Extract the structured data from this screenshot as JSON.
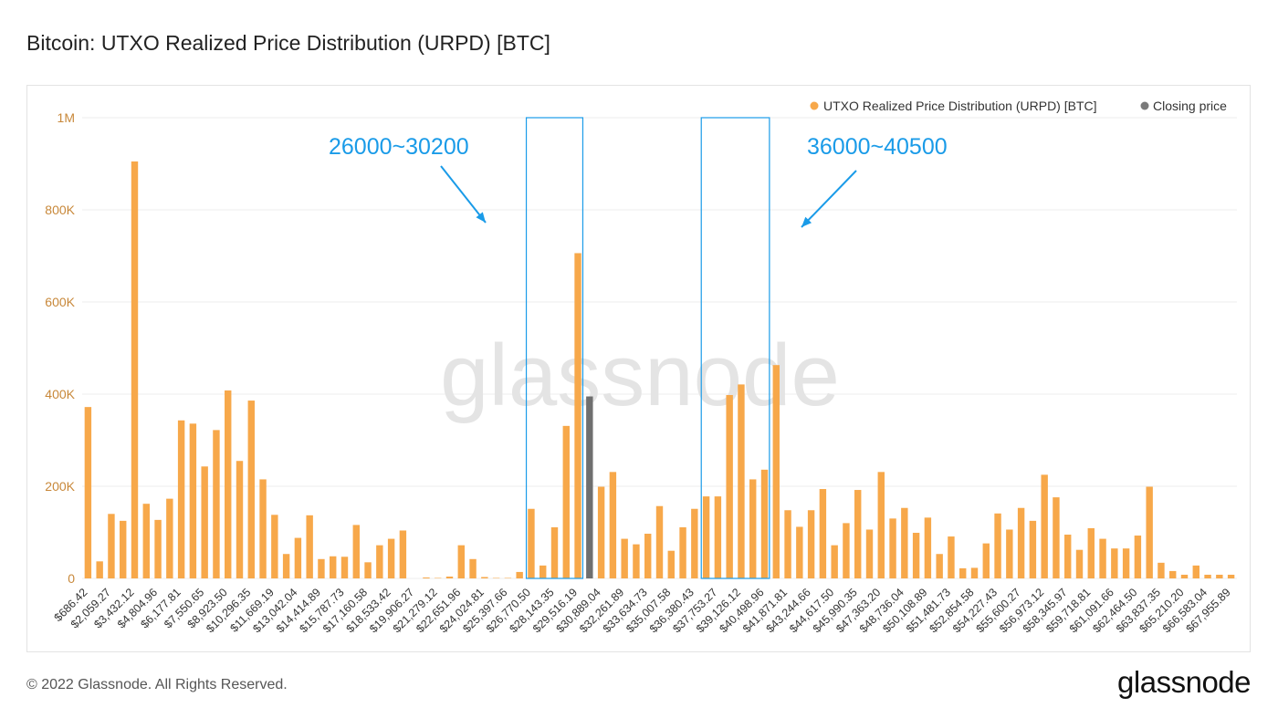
{
  "title": "Bitcoin: UTXO Realized Price Distribution (URPD) [BTC]",
  "footer": {
    "copyright": "© 2022 Glassnode. All Rights Reserved.",
    "logo_text": "glassnode"
  },
  "watermark": "glassnode",
  "colors": {
    "bar": "#f7a84a",
    "closing": "#6f6f6f",
    "annotation": "#1a9be8",
    "grid": "#eeeeee",
    "axis_text": "#c8883a"
  },
  "annotations": [
    {
      "text": "26000~30200",
      "bar_range": [
        38,
        42
      ]
    },
    {
      "text": "36000~40500",
      "bar_range": [
        53,
        58
      ]
    }
  ],
  "chart_data": {
    "type": "bar",
    "title": "Bitcoin: UTXO Realized Price Distribution (URPD) [BTC]",
    "ylim": [
      0,
      1000000
    ],
    "yticks": [
      "0",
      "200K",
      "400K",
      "600K",
      "800K",
      "1M"
    ],
    "legend_position": "top-right",
    "series": [
      {
        "name": "UTXO Realized Price Distribution (URPD) [BTC]",
        "color": "#f7a84a"
      },
      {
        "name": "Closing price",
        "color": "#7a7a7a"
      }
    ],
    "closing_price_index": 43,
    "tick_labels": [
      "$686.42",
      "$2,059.27",
      "$3,432.12",
      "$4,804.96",
      "$6,177.81",
      "$7,550.65",
      "$8,923.50",
      "$10,296.35",
      "$11,669.19",
      "$13,042.04",
      "$14,414.89",
      "$15,787.73",
      "$17,160.58",
      "$18,533.42",
      "$19,906.27",
      "$21,279.12",
      "$22,651.96",
      "$24,024.81",
      "$25,397.66",
      "$26,770.50",
      "$28,143.35",
      "$29,516.19",
      "$30,889.04",
      "$32,261.89",
      "$33,634.73",
      "$35,007.58",
      "$36,380.43",
      "$37,753.27",
      "$39,126.12",
      "$40,498.96",
      "$41,871.81",
      "$43,244.66",
      "$44,617.50",
      "$45,990.35",
      "$47,363.20",
      "$48,736.04",
      "$50,108.89",
      "$51,481.73",
      "$52,854.58",
      "$54,227.43",
      "$55,600.27",
      "$56,973.12",
      "$58,345.97",
      "$59,718.81",
      "$61,091.66",
      "$62,464.50",
      "$63,837.35",
      "$65,210.20",
      "$66,583.04",
      "$67,955.89"
    ],
    "values": [
      372000,
      37000,
      140000,
      125000,
      905000,
      162000,
      127000,
      173000,
      343000,
      336000,
      243000,
      322000,
      408000,
      255000,
      386000,
      215000,
      138000,
      53000,
      88000,
      137000,
      42000,
      48000,
      47000,
      116000,
      35000,
      72000,
      86000,
      104000,
      0,
      2000,
      1000,
      4000,
      72000,
      42000,
      3000,
      1000,
      1000,
      14000,
      151000,
      28000,
      111000,
      331000,
      706000,
      395000,
      199000,
      231000,
      86000,
      74000,
      97000,
      157000,
      60000,
      111000,
      151000,
      178000,
      178000,
      398000,
      421000,
      215000,
      236000,
      463000,
      148000,
      112000,
      148000,
      194000,
      72000,
      120000,
      192000,
      106000,
      231000,
      130000,
      153000,
      99000,
      132000,
      53000,
      91000,
      22000,
      23000,
      76000,
      141000,
      106000,
      153000,
      125000,
      225000,
      176000,
      95000,
      62000,
      109000,
      86000,
      65000,
      65000,
      93000,
      199000,
      34000,
      16000,
      8000,
      28000,
      8000,
      8000,
      8000
    ]
  }
}
